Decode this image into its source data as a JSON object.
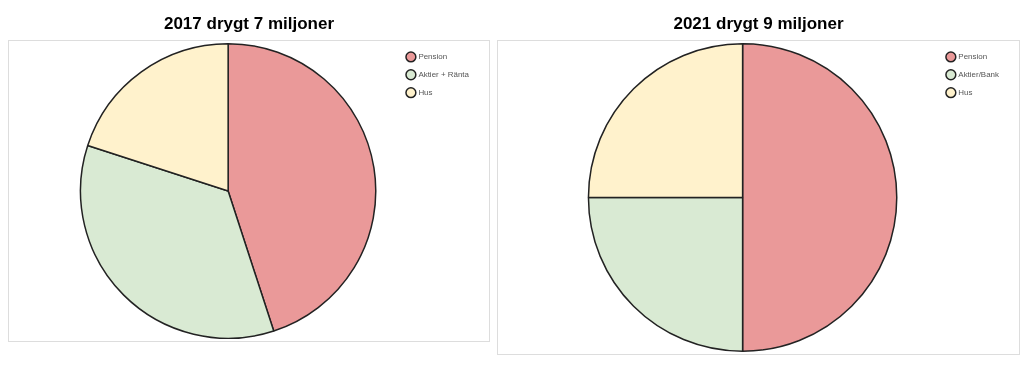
{
  "chart_data": [
    {
      "type": "pie",
      "title": "2017 drygt 7 miljoner",
      "categories": [
        "Pension",
        "Aktier + Ränta",
        "Hus"
      ],
      "values": [
        45,
        35,
        20
      ],
      "colors": [
        "#ea9999",
        "#d9ead3",
        "#fff2cc"
      ],
      "legend": "top right"
    },
    {
      "type": "pie",
      "title": "2021 drygt 9 miljoner",
      "categories": [
        "Pension",
        "Aktier/Bank",
        "Hus"
      ],
      "values": [
        50,
        25,
        25
      ],
      "colors": [
        "#ea9999",
        "#d9ead3",
        "#fff2cc"
      ],
      "legend": "top right"
    }
  ]
}
